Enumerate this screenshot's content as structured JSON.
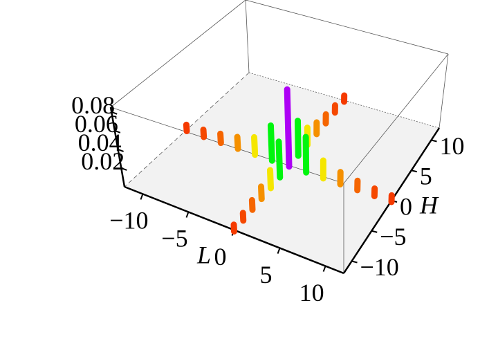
{
  "chart_data": {
    "type": "surface3d",
    "xlabel": "L",
    "ylabel": "H",
    "x": [
      -12,
      -10,
      -8,
      -6,
      -4,
      -2,
      0,
      2,
      4,
      6,
      8,
      10,
      12
    ],
    "y": [
      -12,
      -10,
      -8,
      -6,
      -4,
      -2,
      0,
      2,
      4,
      6,
      8,
      10,
      12
    ],
    "z": [
      [
        0,
        0,
        0,
        0,
        0,
        0,
        0.004,
        0,
        0,
        0,
        0,
        0,
        0
      ],
      [
        0,
        0,
        0,
        0,
        0,
        0,
        0.005,
        0,
        0,
        0,
        0,
        0,
        0
      ],
      [
        0,
        0,
        0,
        0,
        0,
        0,
        0.007,
        0,
        0,
        0,
        0,
        0,
        0
      ],
      [
        0,
        0,
        0,
        0,
        0,
        0,
        0.01,
        0,
        0,
        0,
        0,
        0,
        0
      ],
      [
        0,
        0,
        0,
        0,
        0,
        0,
        0.016,
        0,
        0,
        0,
        0,
        0,
        0
      ],
      [
        0,
        0,
        0,
        0,
        0,
        0,
        0.035,
        0,
        0,
        0,
        0,
        0,
        0
      ],
      [
        0.004,
        0.005,
        0.007,
        0.01,
        0.016,
        0.035,
        0.08,
        0.035,
        0.016,
        0.01,
        0.007,
        0.005,
        0.004
      ],
      [
        0,
        0,
        0,
        0,
        0,
        0,
        0.035,
        0,
        0,
        0,
        0,
        0,
        0
      ],
      [
        0,
        0,
        0,
        0,
        0,
        0,
        0.016,
        0,
        0,
        0,
        0,
        0,
        0
      ],
      [
        0,
        0,
        0,
        0,
        0,
        0,
        0.01,
        0,
        0,
        0,
        0,
        0,
        0
      ],
      [
        0,
        0,
        0,
        0,
        0,
        0,
        0.007,
        0,
        0,
        0,
        0,
        0,
        0
      ],
      [
        0,
        0,
        0,
        0,
        0,
        0,
        0.005,
        0,
        0,
        0,
        0,
        0,
        0
      ],
      [
        0,
        0,
        0,
        0,
        0,
        0,
        0.004,
        0,
        0,
        0,
        0,
        0,
        0
      ]
    ],
    "xlim": [
      -12,
      12
    ],
    "ylim": [
      -12,
      12
    ],
    "zlim": [
      0,
      0.085
    ],
    "xticks": [
      {
        "value": -10,
        "label": "−10"
      },
      {
        "value": -5,
        "label": "−5"
      },
      0,
      5,
      10
    ],
    "yticks": [
      {
        "value": -10,
        "label": "−10"
      },
      {
        "value": -5,
        "label": "−5"
      },
      0,
      5,
      10
    ],
    "zticks": [
      0.02,
      0.04,
      0.06,
      0.08
    ],
    "colormap": "hue"
  }
}
